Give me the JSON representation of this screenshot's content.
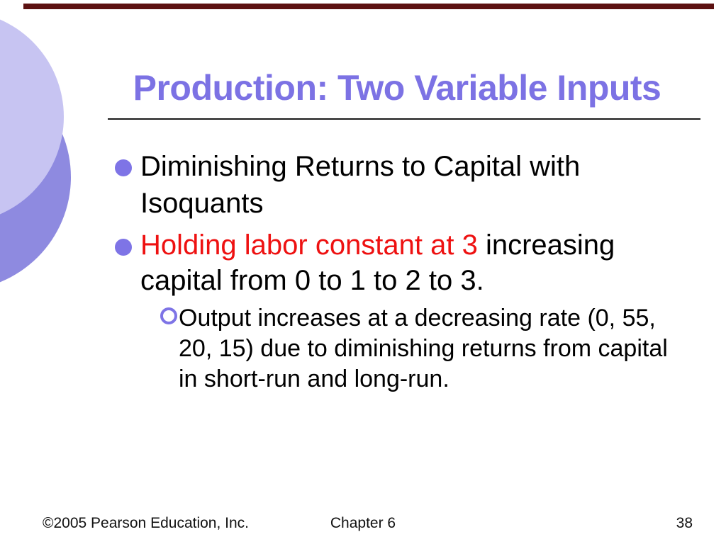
{
  "slide": {
    "title": "Production: Two Variable Inputs",
    "bullets": {
      "first": {
        "text": "Diminishing Returns to Capital with Isoquants"
      },
      "second": {
        "red_text": "Holding labor constant at 3",
        "black_text": " increasing capital from 0 to 1 to 2 to 3."
      },
      "sub": {
        "text": "Output increases at a decreasing rate (0, 55, 20, 15) due to diminishing returns from capital in short-run and long-run."
      }
    },
    "footer": {
      "copyright": "©2005 Pearson Education, Inc.",
      "chapter": "Chapter 6",
      "page": "38"
    },
    "colors": {
      "title_purple": "#7c72e4",
      "bullet_accent": "#7e74e6",
      "emphasis_red": "#ee1111",
      "top_bar_maroon": "#5c1111",
      "circle_light": "#c7c4f2",
      "circle_dark": "#8e8ae0"
    }
  }
}
